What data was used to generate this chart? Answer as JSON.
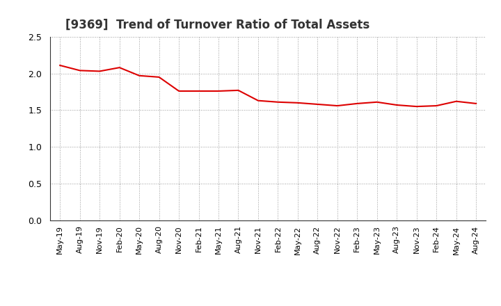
{
  "title": "[9369]  Trend of Turnover Ratio of Total Assets",
  "line_color": "#dd0000",
  "line_width": 1.5,
  "background_color": "#ffffff",
  "grid_color": "#999999",
  "ylim": [
    0.0,
    2.5
  ],
  "yticks": [
    0.0,
    0.5,
    1.0,
    1.5,
    2.0,
    2.5
  ],
  "x_labels": [
    "May-19",
    "Aug-19",
    "Nov-19",
    "Feb-20",
    "May-20",
    "Aug-20",
    "Nov-20",
    "Feb-21",
    "May-21",
    "Aug-21",
    "Nov-21",
    "Feb-22",
    "May-22",
    "Aug-22",
    "Nov-22",
    "Feb-23",
    "May-23",
    "Aug-23",
    "Nov-23",
    "Feb-24",
    "May-24",
    "Aug-24"
  ],
  "values": [
    2.11,
    2.04,
    2.03,
    2.08,
    1.97,
    1.95,
    1.76,
    1.76,
    1.76,
    1.77,
    1.63,
    1.61,
    1.6,
    1.58,
    1.56,
    1.59,
    1.61,
    1.57,
    1.55,
    1.56,
    1.62,
    1.59
  ],
  "title_fontsize": 12,
  "tick_fontsize": 9,
  "xlabel_fontsize": 8
}
